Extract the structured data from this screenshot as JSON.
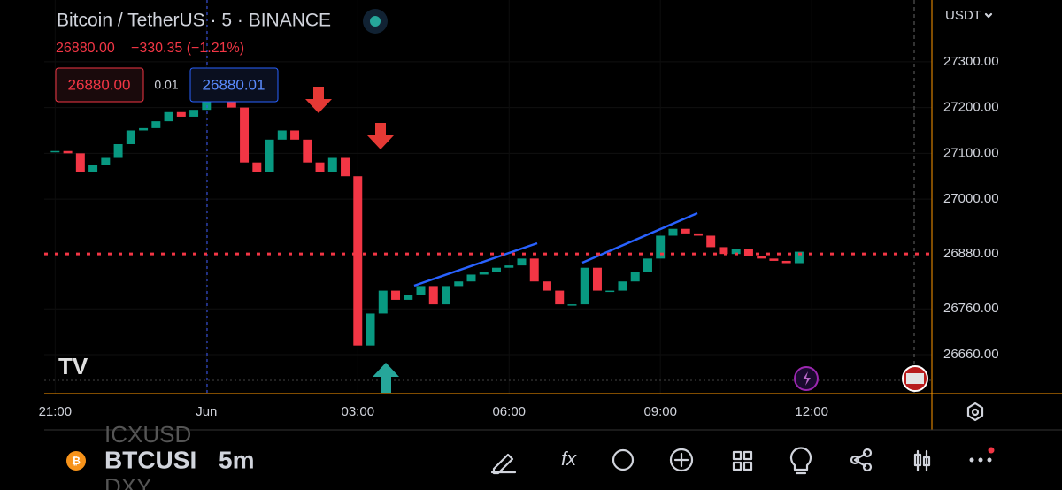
{
  "header": {
    "symbol": "Bitcoin / TetherUS · 5 · BINANCE",
    "price": "26880.00",
    "change": "−330.35 (−1.21%)",
    "bid": "26880.00",
    "spread": "0.01",
    "ask": "26880.01"
  },
  "currency": "USDT",
  "chart_data": {
    "type": "candlestick",
    "x": [
      0,
      15,
      30,
      45,
      60,
      75,
      90,
      105,
      120,
      135,
      150,
      165,
      180,
      195,
      210,
      225,
      240,
      255,
      270,
      285,
      300,
      315,
      330,
      345,
      360,
      375,
      390,
      405,
      420,
      435,
      450,
      465,
      480,
      495,
      510,
      525,
      540,
      555,
      570,
      585,
      600,
      615,
      630,
      645,
      660,
      675,
      690,
      705,
      720,
      735,
      750,
      765,
      780,
      795,
      810,
      825,
      840,
      855,
      870,
      885
    ],
    "values": [
      27105,
      27100,
      27060,
      27075,
      27090,
      27120,
      27150,
      27155,
      27170,
      27190,
      27180,
      27195,
      27230,
      27250,
      27200,
      27080,
      27060,
      27130,
      27150,
      27130,
      27080,
      27060,
      27090,
      27050,
      26680,
      26750,
      26800,
      26780,
      26790,
      26810,
      26770,
      26810,
      26820,
      26835,
      26840,
      26850,
      26855,
      26870,
      26820,
      26800,
      26770,
      26770,
      26850,
      26800,
      26800,
      26820,
      26840,
      26870,
      26920,
      26935,
      26925,
      26920,
      26895,
      26880,
      26890,
      26875,
      26870,
      26865,
      26860,
      26885
    ],
    "xlim": [
      -13,
      1043
    ],
    "xticks": [
      {
        "value": 0,
        "label": "21:00"
      },
      {
        "value": 180,
        "label": "Jun"
      },
      {
        "value": 360,
        "label": "03:00"
      },
      {
        "value": 540,
        "label": "06:00"
      },
      {
        "value": 720,
        "label": "09:00"
      },
      {
        "value": 900,
        "label": "12:00"
      }
    ],
    "ylim": [
      26575,
      27435
    ],
    "yticks": [
      {
        "value": 27300,
        "label": "27300.00"
      },
      {
        "value": 27200,
        "label": "27200.00"
      },
      {
        "value": 27100,
        "label": "27100.00"
      },
      {
        "value": 27000,
        "label": "27000.00"
      },
      {
        "value": 26760,
        "label": "26760.00"
      },
      {
        "value": 26660,
        "label": "26660.00"
      }
    ],
    "current_price": {
      "value": 26880,
      "label": "26880.00"
    },
    "up_color": "#089981",
    "down_color": "#f23645"
  },
  "toolbar": {
    "prev_symbol": "ICXUSD",
    "symbol": "BTCUSI",
    "interval": "5m",
    "next_symbol": "DXY"
  }
}
